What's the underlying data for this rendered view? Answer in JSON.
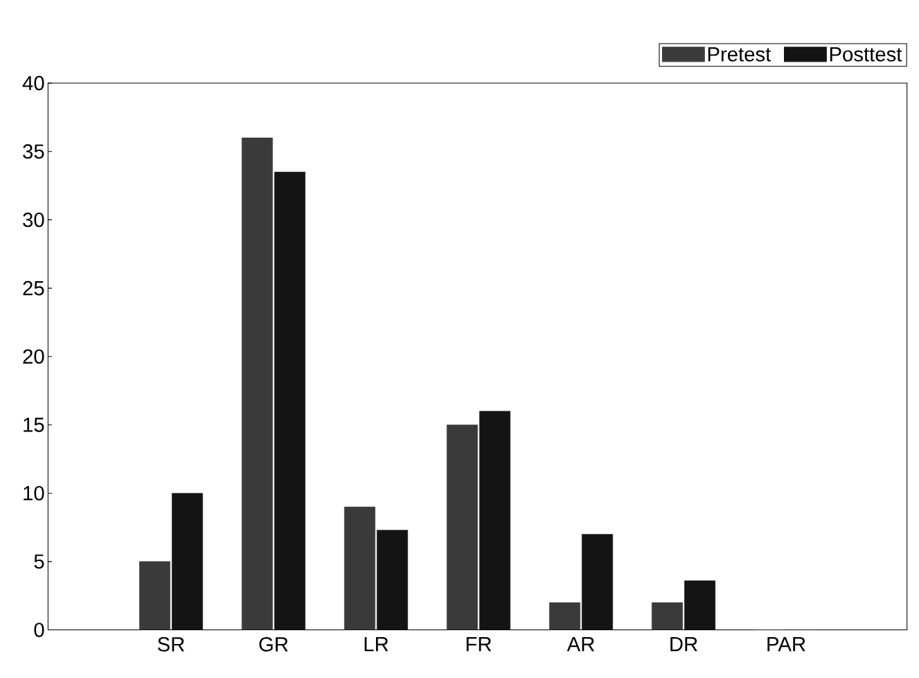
{
  "chart_data": {
    "type": "bar",
    "categories": [
      "SR",
      "GR",
      "LR",
      "FR",
      "AR",
      "DR",
      "PAR"
    ],
    "series": [
      {
        "name": "Pretest",
        "color": "#3a3a3a",
        "values": [
          5,
          36,
          9,
          15,
          2,
          2,
          0
        ]
      },
      {
        "name": "Posttest",
        "color": "#141414",
        "values": [
          10,
          33.5,
          7.3,
          16,
          7,
          3.6,
          0
        ]
      }
    ],
    "ylim": [
      0,
      40
    ],
    "yticks": [
      0,
      5,
      10,
      15,
      20,
      25,
      30,
      35,
      40
    ],
    "grid": false,
    "legend": "top right"
  }
}
